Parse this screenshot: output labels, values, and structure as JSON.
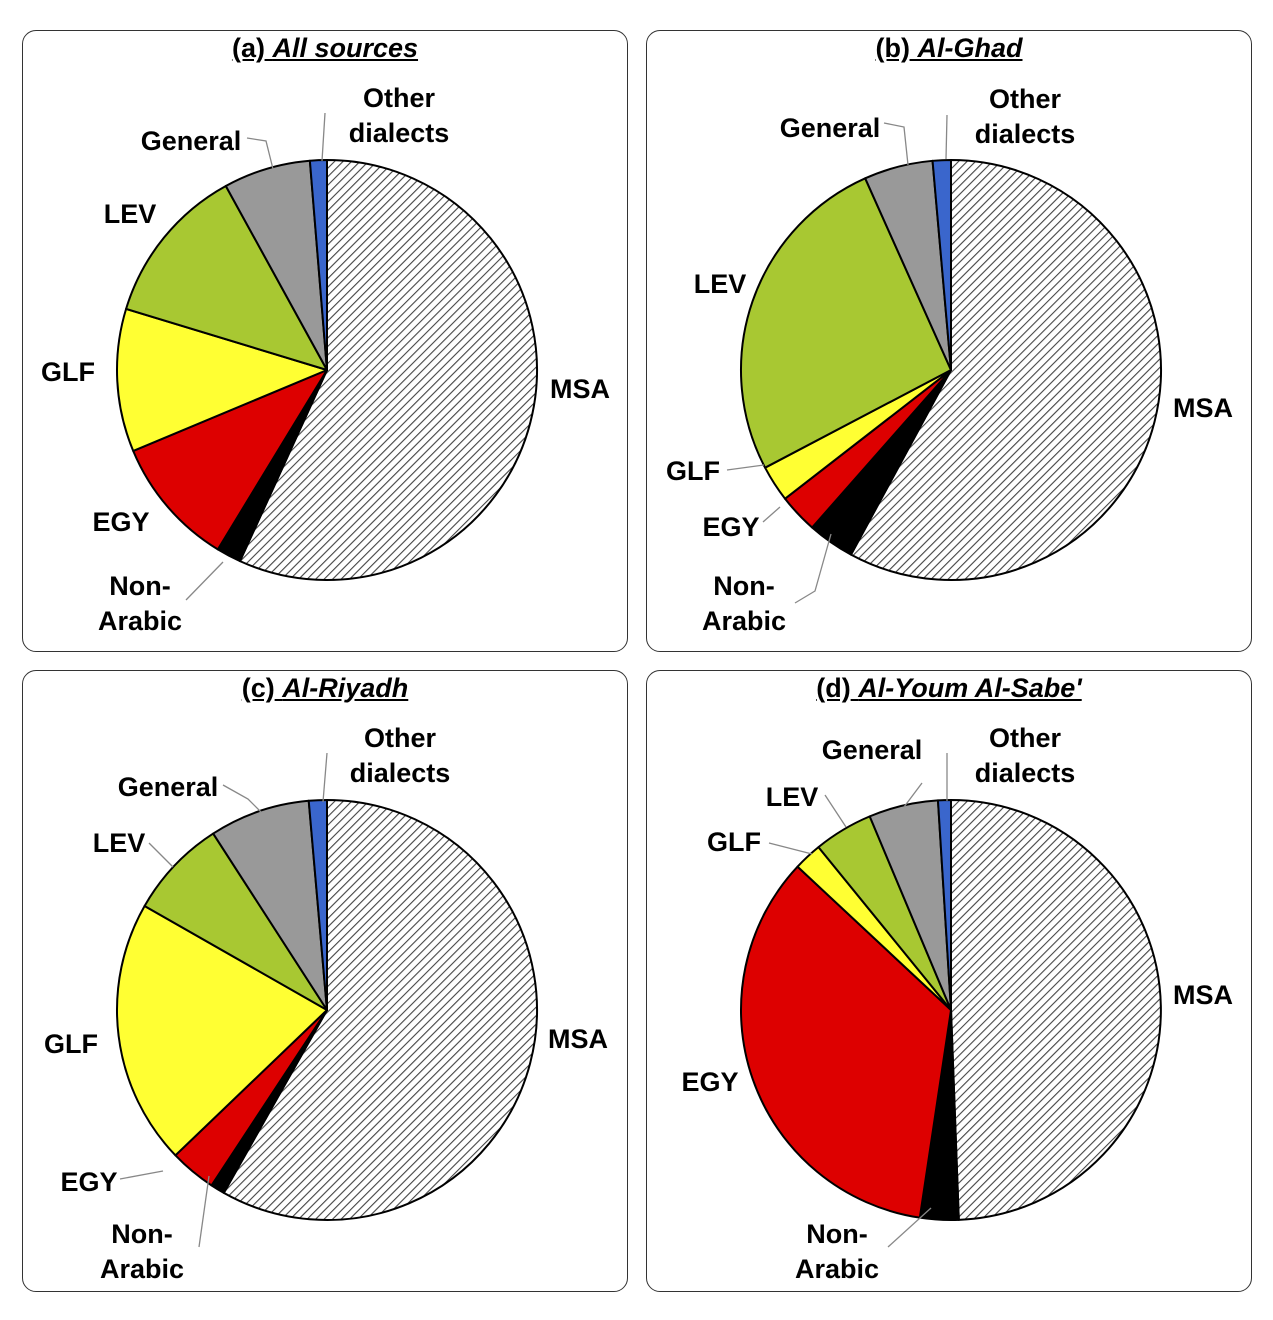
{
  "chart_data": [
    {
      "type": "pie",
      "title_prefix": "(a)",
      "title_name": "All sources",
      "title_italic": false,
      "categories": [
        "MSA",
        "Non-Arabic",
        "EGY",
        "GLF",
        "LEV",
        "General",
        "Other dialects"
      ],
      "values": [
        56.8,
        1.9,
        10.0,
        11.0,
        12.3,
        6.7,
        1.3
      ]
    },
    {
      "type": "pie",
      "title_prefix": "(b)",
      "title_name": "Al-Ghad",
      "title_italic": true,
      "categories": [
        "MSA",
        "Non-Arabic",
        "EGY",
        "GLF",
        "LEV",
        "General",
        "Other dialects"
      ],
      "values": [
        57.9,
        3.6,
        3.0,
        2.8,
        26.0,
        5.3,
        1.4
      ]
    },
    {
      "type": "pie",
      "title_prefix": "(c)",
      "title_name": "Al-Riyadh",
      "title_italic": true,
      "categories": [
        "MSA",
        "Non-Arabic",
        "EGY",
        "GLF",
        "LEV",
        "General",
        "Other dialects"
      ],
      "values": [
        58.7,
        1.1,
        3.6,
        20.6,
        7.7,
        7.8,
        1.4
      ]
    },
    {
      "type": "pie",
      "title_prefix": "(d)",
      "title_name": "Al-Youm Al-Sabe'",
      "title_italic": true,
      "categories": [
        "MSA",
        "Non-Arabic",
        "EGY",
        "GLF",
        "LEV",
        "General",
        "Other dialects"
      ],
      "values": [
        50.0,
        3.0,
        35.0,
        2.2,
        4.6,
        5.4,
        1.0
      ]
    }
  ],
  "colors": {
    "MSA": "#d6d6d6",
    "Non-Arabic": "#000000",
    "EGY": "#dd0000",
    "GLF": "#ffff33",
    "LEV": "#a8c832",
    "General": "#999999",
    "Other dialects": "#3a66cc"
  },
  "labels": {
    "MSA": [
      "MSA"
    ],
    "Non-Arabic": [
      "Non-",
      "Arabic"
    ],
    "EGY": [
      "EGY"
    ],
    "GLF": [
      "GLF"
    ],
    "LEV": [
      "LEV"
    ],
    "General": [
      "General"
    ],
    "Other dialects": [
      "Other",
      "dialects"
    ]
  }
}
